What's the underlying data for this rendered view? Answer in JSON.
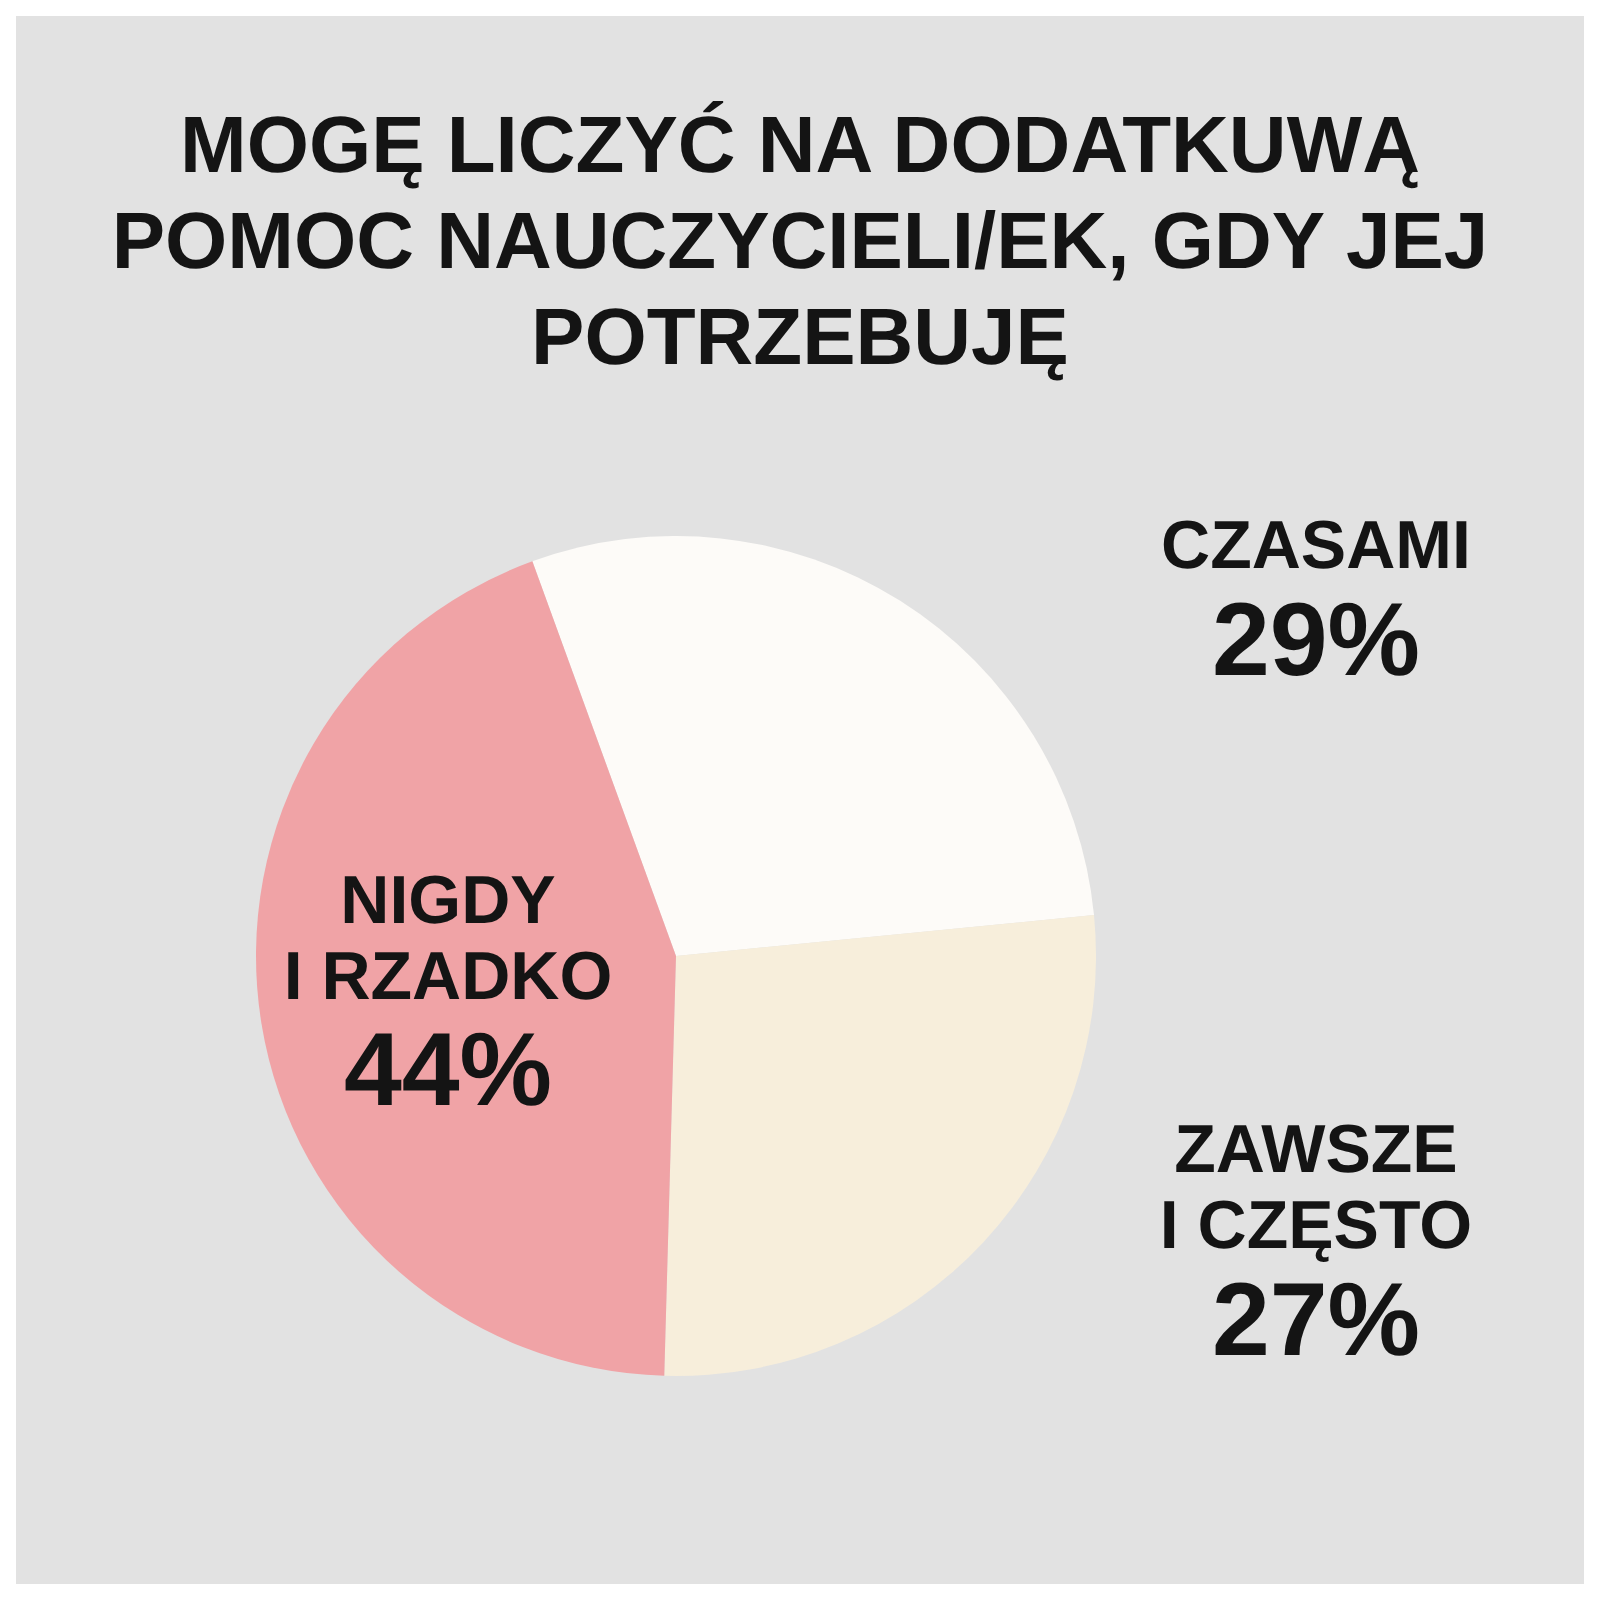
{
  "chart_data": {
    "type": "pie",
    "title": "MOGĘ LICZYĆ NA DODATKUWĄ POMOC NAUCZYCIELI/EK, GDY JEJ POTRZEBUJĘ",
    "categories": [
      "CZASAMI",
      "ZAWSZE I CZĘSTO",
      "NIGDY I RZADKO"
    ],
    "values": [
      29,
      27,
      44
    ],
    "colors": [
      "#fdfbf8",
      "#f7eedb",
      "#f0a3a6"
    ],
    "value_labels": [
      "29%",
      "27%",
      "44%"
    ]
  }
}
